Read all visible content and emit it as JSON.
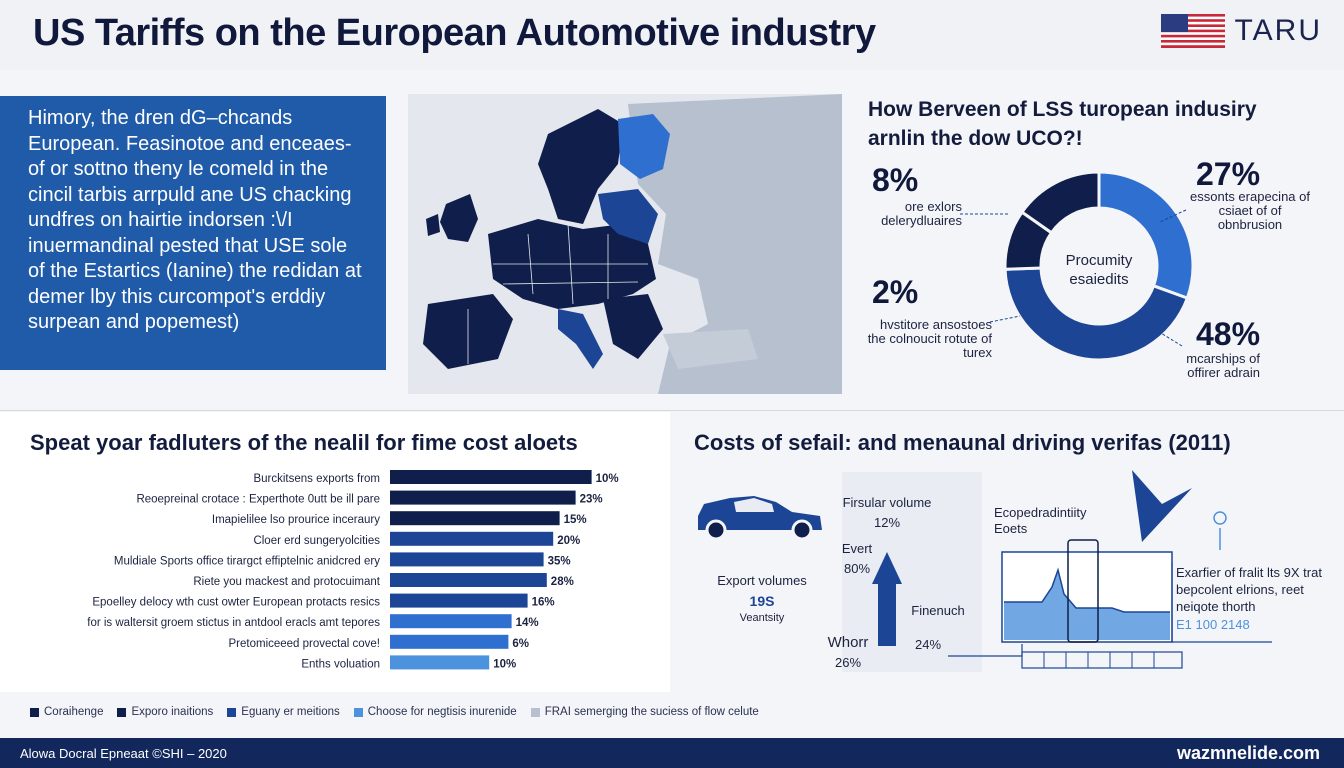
{
  "header": {
    "title": "US Tariffs on the European Automotive industry",
    "brand": "TARU"
  },
  "intro": {
    "paragraph": "Himory, the dren dG–chcands European. Feasinotoe and enceaes-of or sottno theny le comeld in the cincil tarbis arrpuld ane US chacking undfres on hairtie indorsen :\\/I inuermandinal pested that USE sole of the Estartics (Ianine) the redidan at demer lby this curcompot's erddiy surpean and popemest)"
  },
  "colors": {
    "navy": "#0f1e4a",
    "dark_blue": "#1d4596",
    "mid_blue": "#2f6fd0",
    "light_blue": "#4d92dc",
    "pale": "#b6c0cf"
  },
  "donut_section": {
    "title": "How Berveen of LSS turopean indusiry arnlin the dow UCO?!",
    "center_label_1": "Procumity",
    "center_label_2": "esaiedits",
    "stats": [
      {
        "value": "8%",
        "label": "ore exlors delerydluaires"
      },
      {
        "value": "2%",
        "label": "hvstitore ansostoes the colnoucit rotute of turex"
      },
      {
        "value": "27%",
        "label": "essonts erapecina of csiaet of of obnbrusion"
      },
      {
        "value": "48%",
        "label": "mcarships of offirer adrain"
      }
    ]
  },
  "bar_section": {
    "title": "Speat yoar fadluters of the nealil for fime cost aloets"
  },
  "flow_section": {
    "title": "Costs of sefail: and menaunal driving verifas (2011)",
    "labels": {
      "fursular": "Firsular volume",
      "fursular_val": "12%",
      "evert": "Evert",
      "evert_val": "80%",
      "export": "Export volumes",
      "export_val": "19S",
      "export_sub": "Veantsity",
      "whor": "Whorr",
      "whor_val": "26%",
      "finenuch": "Finenuch",
      "finenuch_val": "24%",
      "ecoped": "Ecopedradintiity",
      "eoets": "Eoets",
      "right_text": "Exarfier of fralit lts 9X trat bepcolent elrions, reet neiqote thorth",
      "right_val": "E1 100 2148"
    }
  },
  "legend": [
    {
      "label": "Coraihenge",
      "color": "#0f1e4a"
    },
    {
      "label": "Exporo inaitions",
      "color": "#0f1e4a"
    },
    {
      "label": "Eguany er meitions",
      "color": "#1d4596"
    },
    {
      "label": "Choose for negtisis inurenide",
      "color": "#4d92dc"
    },
    {
      "label": "FRAI semerging the suciess of flow celute",
      "color": "#b6c0cf"
    }
  ],
  "footer": {
    "left": "Alowa Docral Epneaat ©SHI – 2020",
    "right": "wazmnelide.com"
  },
  "chart_data": [
    {
      "type": "pie",
      "title": "How Berveen of LSS turopean indusiry arnlin the dow UCO?!",
      "categories": [
        "27%",
        "48%",
        "8%",
        "2%"
      ],
      "values": [
        27,
        48,
        8,
        2
      ],
      "colors": [
        "#2f6fd0",
        "#1d4596",
        "#0f1e4a",
        "#0f1e4a"
      ]
    },
    {
      "type": "bar",
      "orientation": "horizontal",
      "title": "Speat yoar fadluters of the nealil for fime cost aloets",
      "categories": [
        "Burckitsens exports from",
        "Reoepreinal crotace : Experthote 0utt be ill pare",
        "Imapielilee lso prourice inceraury",
        "Cloer erd sungeryolcities",
        "Muldiale Sports office tirargct effiptelnic anidcred ery",
        "Riete you mackest and protocuimant",
        "Epoelley delocy wth cust owter European protacts resics",
        "for is waltersit groem stictus in antdool eracls amt tepores",
        "Pretomiceeed provectal cove!",
        "Enths voluation"
      ],
      "value_labels": [
        "10%",
        "23%",
        "15%",
        "20%",
        "35%",
        "28%",
        "16%",
        "14%",
        "6%",
        "10%"
      ],
      "values": [
        10,
        23,
        15,
        20,
        35,
        28,
        16,
        14,
        6,
        10
      ],
      "bar_extent": [
        0.63,
        0.58,
        0.53,
        0.51,
        0.48,
        0.49,
        0.43,
        0.38,
        0.37,
        0.31
      ],
      "colors": [
        "#0f1e4a",
        "#0f1e4a",
        "#0f1e4a",
        "#1d4596",
        "#1d4596",
        "#1d4596",
        "#1d4596",
        "#2f6fd0",
        "#2f6fd0",
        "#4d92dc"
      ]
    }
  ]
}
